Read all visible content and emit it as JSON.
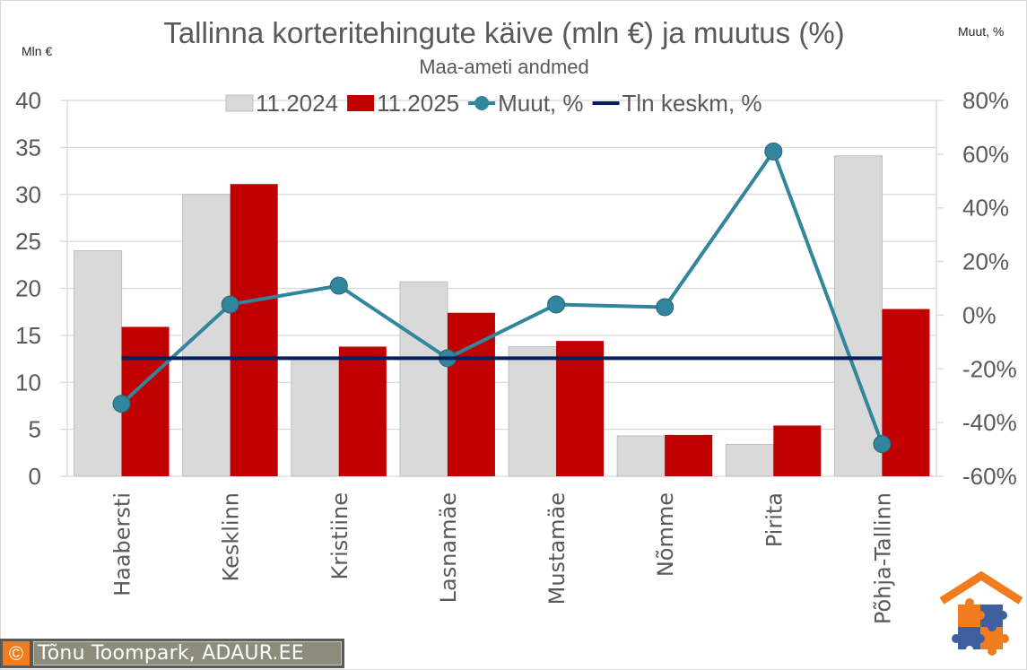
{
  "chart_data": {
    "type": "bar",
    "title": "Tallinna korteritehingute käive (mln €) ja muutus (%)",
    "subtitle": "Maa-ameti andmed",
    "ylabel": "Mln €",
    "y2label": "Muut, %",
    "ylim": [
      0,
      40
    ],
    "yticks": [
      0,
      5,
      10,
      15,
      20,
      25,
      30,
      35,
      40
    ],
    "y2lim": [
      -60,
      80
    ],
    "y2ticks": [
      "-60%",
      "-40%",
      "-20%",
      "0%",
      "20%",
      "40%",
      "60%",
      "80%"
    ],
    "grid": true,
    "legend_position": "top",
    "categories": [
      "Haabersti",
      "Kesklinn",
      "Kristiine",
      "Lasnamäe",
      "Mustamäe",
      "Nõmme",
      "Pirita",
      "Põhja-Tallinn"
    ],
    "series": [
      {
        "name": "11.2024",
        "type": "bar",
        "axis": "left",
        "color": "#d9d9d9",
        "values": [
          24.0,
          30.0,
          12.5,
          20.7,
          13.8,
          4.3,
          3.4,
          34.1
        ]
      },
      {
        "name": "11.2025",
        "type": "bar",
        "axis": "left",
        "color": "#c00000",
        "values": [
          15.9,
          31.1,
          13.8,
          17.4,
          14.4,
          4.4,
          5.4,
          17.8
        ]
      },
      {
        "name": "Muut, %",
        "type": "line-marker",
        "axis": "right",
        "color": "#31859c",
        "values": [
          -33,
          4,
          11,
          -16,
          4,
          3,
          61,
          -48
        ]
      },
      {
        "name": "Tln keskm, %",
        "type": "line",
        "axis": "right",
        "color": "#002060",
        "values": [
          -16,
          -16,
          -16,
          -16,
          -16,
          -16,
          -16,
          -16
        ]
      }
    ]
  },
  "credit": {
    "copyright_symbol": "©",
    "text": "Tõnu Toompark, ADAUR.EE"
  },
  "colors": {
    "bar_2024": "#d9d9d9",
    "bar_2025": "#c00000",
    "line_change": "#31859c",
    "line_avg": "#002060",
    "logo_orange": "#f07c1e",
    "logo_blue": "#3f5f9f"
  }
}
